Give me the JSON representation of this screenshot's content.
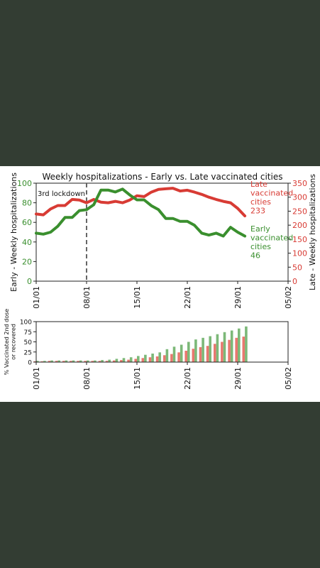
{
  "chart_data": [
    {
      "type": "line",
      "title": "Weekly hospitalizations - Early vs. Late vaccinated cities",
      "ylabel_left": "Early - Weekly hospitalizations",
      "ylabel_right": "Late - Weekly hospitalizations",
      "x_ticks": [
        "01/01",
        "08/01",
        "15/01",
        "22/01",
        "29/01",
        "05/02"
      ],
      "x_range_days": [
        1,
        36
      ],
      "ylim_left": [
        0,
        100
      ],
      "ylim_right": [
        0,
        350
      ],
      "yticks_left": [
        "0",
        "20",
        "40",
        "60",
        "80",
        "100"
      ],
      "yticks_right": [
        "0",
        "50",
        "100",
        "150",
        "200",
        "250",
        "300",
        "350"
      ],
      "annotation": {
        "text": "3rd lockdown",
        "x_day": 8
      },
      "series": [
        {
          "label_lines": [
            "Early",
            "vaccinated",
            "cities",
            "46"
          ],
          "color": "#3a8f2e",
          "axis": "left",
          "x_day": [
            1,
            2,
            3,
            4,
            5,
            6,
            7,
            8,
            9,
            10,
            11,
            12,
            13,
            14,
            15,
            16,
            17,
            18,
            19,
            20,
            21,
            22,
            23,
            24,
            25,
            26,
            27,
            28,
            29,
            30
          ],
          "y": [
            49,
            48,
            50,
            56,
            65,
            65,
            72,
            73,
            78,
            93,
            93,
            91,
            94,
            88,
            83,
            83,
            77,
            73,
            64,
            64,
            61,
            61,
            57,
            49,
            47,
            49,
            46,
            55,
            50,
            46
          ]
        },
        {
          "label_lines": [
            "Late",
            "vaccinated",
            "cities",
            "233"
          ],
          "color": "#d83b34",
          "axis": "right",
          "x_day": [
            1,
            2,
            3,
            4,
            5,
            6,
            7,
            8,
            9,
            10,
            11,
            12,
            13,
            14,
            15,
            16,
            17,
            18,
            19,
            20,
            21,
            22,
            23,
            24,
            25,
            26,
            27,
            28,
            29,
            30
          ],
          "y": [
            240,
            237,
            258,
            270,
            270,
            292,
            290,
            280,
            292,
            282,
            280,
            285,
            280,
            290,
            305,
            302,
            318,
            328,
            330,
            332,
            322,
            325,
            318,
            310,
            300,
            292,
            285,
            280,
            260,
            233
          ]
        }
      ]
    },
    {
      "type": "bar",
      "ylabel_lines": [
        "% Vaccinated 2nd dose",
        "or recovered"
      ],
      "x_ticks": [
        "01/01",
        "08/01",
        "15/01",
        "22/01",
        "29/01",
        "05/02"
      ],
      "x_range_days": [
        1,
        36
      ],
      "ylim": [
        0,
        100
      ],
      "yticks": [
        "0",
        "25",
        "50",
        "75",
        "100"
      ],
      "series": [
        {
          "color": "#e8786f",
          "x_day": [
            1,
            2,
            3,
            4,
            5,
            6,
            7,
            8,
            9,
            10,
            11,
            12,
            13,
            14,
            15,
            16,
            17,
            18,
            19,
            20,
            21,
            22,
            23,
            24,
            25,
            26,
            27,
            28,
            29,
            30
          ],
          "values": [
            2,
            2,
            3,
            3,
            3,
            3,
            3,
            3,
            3,
            3,
            3,
            4,
            5,
            6,
            8,
            10,
            12,
            14,
            17,
            20,
            24,
            28,
            33,
            37,
            40,
            45,
            50,
            55,
            60,
            63
          ]
        },
        {
          "color": "#7cb878",
          "x_day": [
            1,
            2,
            3,
            4,
            5,
            6,
            7,
            8,
            9,
            10,
            11,
            12,
            13,
            14,
            15,
            16,
            17,
            18,
            19,
            20,
            21,
            22,
            23,
            24,
            25,
            26,
            27,
            28,
            29,
            30
          ],
          "values": [
            3,
            3,
            4,
            4,
            4,
            4,
            4,
            4,
            4,
            5,
            6,
            8,
            10,
            12,
            15,
            18,
            21,
            24,
            32,
            38,
            43,
            50,
            56,
            60,
            64,
            69,
            74,
            78,
            83,
            88
          ]
        }
      ]
    }
  ]
}
